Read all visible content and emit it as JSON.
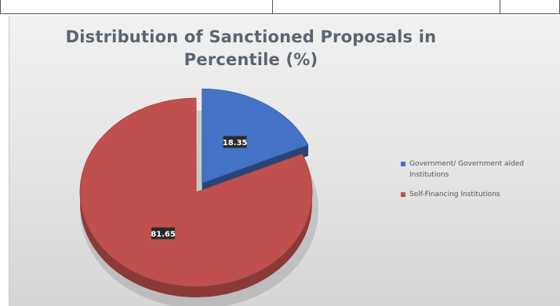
{
  "chart_data": {
    "type": "pie",
    "title_lines": [
      "Distribution of  Sanctioned Proposals in",
      "Percentile (%)"
    ],
    "slices": [
      {
        "label": "Government/ Government aided Institutions",
        "value": 18.35,
        "value_label": "18.35",
        "color": "#4472c4"
      },
      {
        "label": "Self-Financing Institutions",
        "value": 81.65,
        "value_label": "81.65",
        "color": "#c0504d"
      }
    ],
    "legend_position": "right",
    "exploded_slice": "Government/ Government aided Institutions",
    "style": "3d"
  }
}
